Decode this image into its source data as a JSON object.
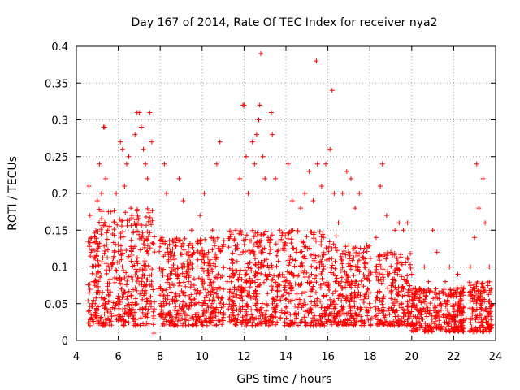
{
  "chart_data": {
    "type": "scatter",
    "title": "Day 167 of 2014, Rate Of TEC Index for receiver nya2",
    "xlabel": "GPS time / hours",
    "ylabel": "ROTI / TECUs",
    "xlim": [
      4,
      24
    ],
    "ylim": [
      0,
      0.4
    ],
    "x_ticks": [
      4,
      6,
      8,
      10,
      12,
      14,
      16,
      18,
      20,
      22,
      24
    ],
    "x_tick_labels": [
      "4",
      "6",
      "8",
      "10",
      "12",
      "14",
      "16",
      "18",
      "20",
      "22",
      "24"
    ],
    "y_ticks": [
      0,
      0.05,
      0.1,
      0.15,
      0.2,
      0.25,
      0.3,
      0.35,
      0.4
    ],
    "y_tick_labels": [
      "0",
      "0.05",
      "0.1",
      "0.15",
      "0.2",
      "0.25",
      "0.3",
      "0.35",
      "0.4"
    ],
    "grid": true,
    "marker": "+",
    "color": "#ff0000",
    "series": [
      {
        "name": "ROTI",
        "points": [
          [
            4.6,
            0.21
          ],
          [
            4.65,
            0.17
          ],
          [
            4.7,
            0.12
          ],
          [
            4.8,
            0.08
          ],
          [
            4.9,
            0.05
          ],
          [
            5.0,
            0.19
          ],
          [
            5.1,
            0.24
          ],
          [
            5.2,
            0.2
          ],
          [
            5.3,
            0.29
          ],
          [
            5.35,
            0.29
          ],
          [
            5.4,
            0.22
          ],
          [
            5.5,
            0.15
          ],
          [
            5.7,
            0.1
          ],
          [
            5.9,
            0.2
          ],
          [
            6.0,
            0.13
          ],
          [
            6.1,
            0.27
          ],
          [
            6.2,
            0.26
          ],
          [
            6.3,
            0.21
          ],
          [
            6.4,
            0.24
          ],
          [
            6.5,
            0.25
          ],
          [
            6.6,
            0.18
          ],
          [
            6.8,
            0.28
          ],
          [
            6.9,
            0.31
          ],
          [
            7.0,
            0.31
          ],
          [
            7.1,
            0.29
          ],
          [
            7.2,
            0.26
          ],
          [
            7.3,
            0.24
          ],
          [
            7.4,
            0.22
          ],
          [
            7.5,
            0.31
          ],
          [
            7.6,
            0.27
          ],
          [
            7.7,
            0.03
          ],
          [
            7.7,
            0.01
          ],
          [
            7.9,
            0.07
          ],
          [
            8.1,
            0.14
          ],
          [
            8.2,
            0.24
          ],
          [
            8.3,
            0.2
          ],
          [
            8.5,
            0.12
          ],
          [
            8.7,
            0.06
          ],
          [
            8.9,
            0.22
          ],
          [
            9.1,
            0.19
          ],
          [
            9.3,
            0.1
          ],
          [
            9.5,
            0.15
          ],
          [
            9.7,
            0.05
          ],
          [
            9.9,
            0.17
          ],
          [
            10.1,
            0.2
          ],
          [
            10.3,
            0.12
          ],
          [
            10.5,
            0.15
          ],
          [
            10.7,
            0.24
          ],
          [
            10.85,
            0.27
          ],
          [
            11.0,
            0.1
          ],
          [
            11.2,
            0.08
          ],
          [
            11.4,
            0.11
          ],
          [
            11.6,
            0.15
          ],
          [
            11.8,
            0.22
          ],
          [
            11.95,
            0.32
          ],
          [
            12.0,
            0.32
          ],
          [
            12.1,
            0.25
          ],
          [
            12.2,
            0.2
          ],
          [
            12.4,
            0.27
          ],
          [
            12.5,
            0.24
          ],
          [
            12.6,
            0.28
          ],
          [
            12.7,
            0.3
          ],
          [
            12.75,
            0.32
          ],
          [
            12.8,
            0.39
          ],
          [
            12.9,
            0.25
          ],
          [
            13.0,
            0.22
          ],
          [
            13.3,
            0.31
          ],
          [
            13.35,
            0.28
          ],
          [
            13.5,
            0.22
          ],
          [
            13.7,
            0.15
          ],
          [
            13.9,
            0.08
          ],
          [
            14.1,
            0.24
          ],
          [
            14.3,
            0.19
          ],
          [
            14.5,
            0.12
          ],
          [
            14.7,
            0.18
          ],
          [
            14.9,
            0.2
          ],
          [
            15.1,
            0.23
          ],
          [
            15.3,
            0.19
          ],
          [
            15.45,
            0.38
          ],
          [
            15.5,
            0.24
          ],
          [
            15.7,
            0.21
          ],
          [
            15.9,
            0.24
          ],
          [
            16.1,
            0.26
          ],
          [
            16.2,
            0.34
          ],
          [
            16.3,
            0.2
          ],
          [
            16.5,
            0.16
          ],
          [
            16.7,
            0.2
          ],
          [
            16.9,
            0.23
          ],
          [
            17.1,
            0.22
          ],
          [
            17.3,
            0.18
          ],
          [
            17.5,
            0.2
          ],
          [
            17.7,
            0.12
          ],
          [
            17.9,
            0.07
          ],
          [
            18.1,
            0.03
          ],
          [
            18.3,
            0.14
          ],
          [
            18.5,
            0.21
          ],
          [
            18.6,
            0.24
          ],
          [
            18.8,
            0.17
          ],
          [
            19.0,
            0.12
          ],
          [
            19.2,
            0.15
          ],
          [
            19.4,
            0.16
          ],
          [
            19.6,
            0.15
          ],
          [
            19.8,
            0.16
          ],
          [
            20.0,
            0.09
          ],
          [
            20.2,
            0.06
          ],
          [
            20.4,
            0.07
          ],
          [
            20.6,
            0.1
          ],
          [
            20.8,
            0.08
          ],
          [
            21.0,
            0.15
          ],
          [
            21.2,
            0.12
          ],
          [
            21.4,
            0.05
          ],
          [
            21.6,
            0.08
          ],
          [
            21.8,
            0.1
          ],
          [
            22.0,
            0.06
          ],
          [
            22.2,
            0.09
          ],
          [
            22.4,
            0.04
          ],
          [
            22.6,
            0.03
          ],
          [
            22.8,
            0.1
          ],
          [
            23.0,
            0.14
          ],
          [
            23.1,
            0.24
          ],
          [
            23.2,
            0.18
          ],
          [
            23.4,
            0.22
          ],
          [
            23.5,
            0.16
          ],
          [
            23.7,
            0.1
          ],
          [
            23.8,
            0.05
          ]
        ]
      }
    ]
  }
}
